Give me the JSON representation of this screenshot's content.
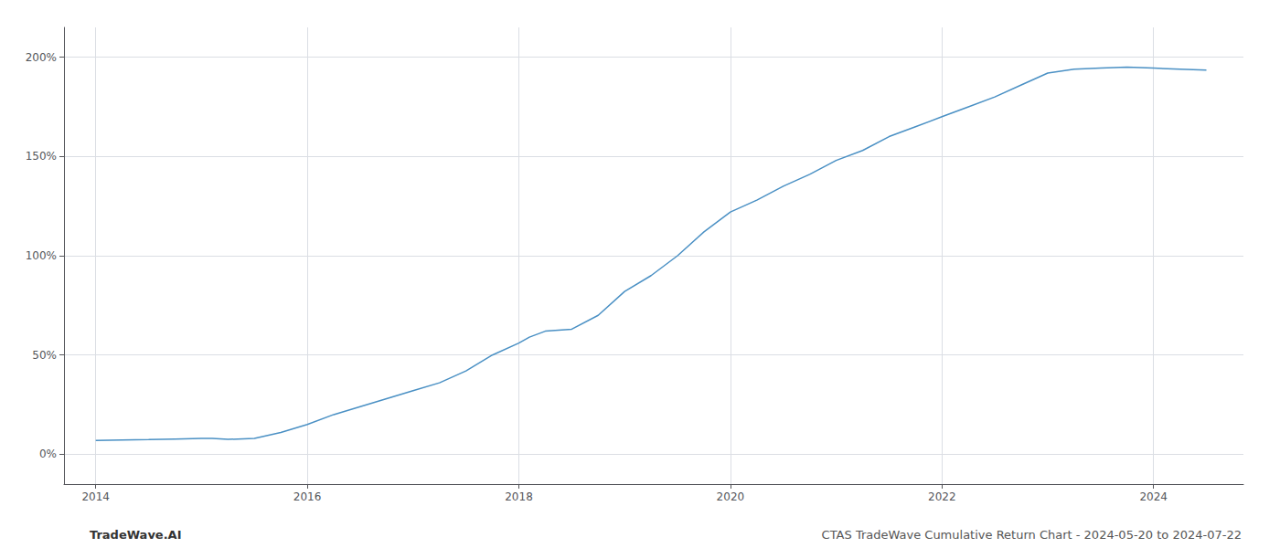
{
  "chart_data": {
    "type": "line",
    "x": [
      2014.0,
      2014.25,
      2014.5,
      2014.75,
      2015.0,
      2015.1,
      2015.25,
      2015.5,
      2015.75,
      2016.0,
      2016.25,
      2016.5,
      2016.75,
      2017.0,
      2017.25,
      2017.5,
      2017.75,
      2018.0,
      2018.1,
      2018.25,
      2018.5,
      2018.75,
      2019.0,
      2019.25,
      2019.5,
      2019.75,
      2020.0,
      2020.25,
      2020.5,
      2020.75,
      2021.0,
      2021.25,
      2021.5,
      2021.75,
      2022.0,
      2022.25,
      2022.5,
      2022.75,
      2023.0,
      2023.25,
      2023.5,
      2023.75,
      2024.0,
      2024.25,
      2024.5
    ],
    "values": [
      7.0,
      7.2,
      7.4,
      7.7,
      8.0,
      8.0,
      7.5,
      8.0,
      11.0,
      15.0,
      20.0,
      24.0,
      28.0,
      32.0,
      36.0,
      42.0,
      50.0,
      56.0,
      59.0,
      62.0,
      63.0,
      70.0,
      82.0,
      90.0,
      100.0,
      112.0,
      122.0,
      128.0,
      135.0,
      141.0,
      148.0,
      153.0,
      160.0,
      165.0,
      170.0,
      175.0,
      180.0,
      186.0,
      192.0,
      194.0,
      194.5,
      195.0,
      194.5,
      194.0,
      193.5
    ],
    "color": "#4a90c4",
    "xlim": [
      2013.7,
      2024.85
    ],
    "ylim": [
      -15,
      215
    ],
    "xticks": [
      2014,
      2016,
      2018,
      2020,
      2022,
      2024
    ],
    "yticks": [
      {
        "value": 0,
        "label": "0%"
      },
      {
        "value": 50,
        "label": "50%"
      },
      {
        "value": 100,
        "label": "100%"
      },
      {
        "value": 150,
        "label": "150%"
      },
      {
        "value": 200,
        "label": "200%"
      }
    ],
    "grid": true,
    "annotations": [
      "TradeWave.AI",
      "CTAS TradeWave Cumulative Return Chart - 2024-05-20 to 2024-07-22"
    ]
  }
}
